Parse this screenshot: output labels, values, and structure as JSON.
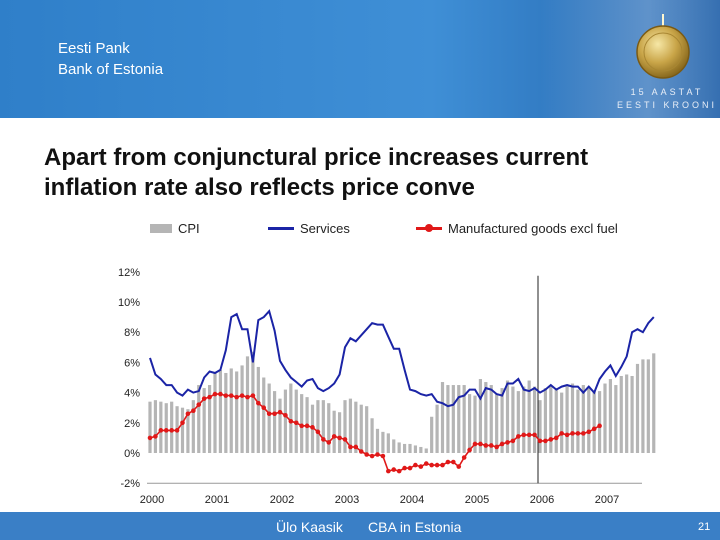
{
  "header": {
    "bank_name_et": "Eesti Pank",
    "bank_name_en": "Bank of Estonia",
    "anniversary_line1": "15 AASTAT",
    "anniversary_line2": "EESTI KROONI"
  },
  "title": "Apart from conjunctural price increases current inflation rate also reflects price conve",
  "footer": {
    "author": "Ülo Kaasik",
    "topic": "CBA in Estonia",
    "page": "21"
  },
  "colors": {
    "cpi": "#b5b5b5",
    "services": "#1b24a6",
    "manufactured": "#e01818"
  },
  "chart_data": {
    "type": "bar",
    "title": "",
    "xlabel": "",
    "ylabel": "",
    "ylim": [
      -2,
      12
    ],
    "yticks": [
      "12%",
      "10%",
      "8%",
      "6%",
      "4%",
      "2%",
      "0%",
      "-2%"
    ],
    "xticks": [
      "2000",
      "2001",
      "2002",
      "2003",
      "2004",
      "2005",
      "2006",
      "2007"
    ],
    "frequency": "monthly",
    "start": "2000-01",
    "vertical_marker": "2006-01",
    "legend": [
      "CPI",
      "Services",
      "Manufactured goods excl fuel"
    ],
    "series": [
      {
        "name": "CPI",
        "type": "bar",
        "values": [
          3.4,
          3.5,
          3.4,
          3.3,
          3.4,
          3.1,
          3.0,
          2.9,
          3.5,
          4.5,
          4.3,
          4.5,
          5.3,
          5.5,
          5.3,
          5.6,
          5.4,
          5.8,
          6.4,
          6.7,
          5.7,
          5.0,
          4.6,
          4.1,
          3.6,
          4.2,
          4.6,
          4.2,
          3.9,
          3.7,
          3.2,
          3.5,
          3.5,
          3.3,
          2.8,
          2.7,
          3.5,
          3.6,
          3.4,
          3.2,
          3.1,
          2.3,
          1.6,
          1.4,
          1.3,
          0.9,
          0.7,
          0.6,
          0.6,
          0.5,
          0.4,
          0.3,
          2.4,
          3.2,
          4.7,
          4.5,
          4.5,
          4.5,
          4.5,
          3.9,
          3.8,
          4.9,
          4.7,
          4.5,
          3.9,
          4.3,
          4.8,
          4.4,
          4.1,
          4.4,
          4.8,
          4.4,
          3.5,
          4.3,
          4.4,
          4.3,
          4.0,
          4.4,
          4.6,
          4.2,
          4.5,
          4.4,
          4.1,
          4.1,
          4.6,
          4.9,
          4.5,
          5.1,
          5.2,
          5.1,
          5.9,
          6.2,
          6.2,
          6.6
        ]
      },
      {
        "name": "Services",
        "type": "line",
        "values": [
          6.3,
          5.2,
          4.9,
          4.5,
          4.5,
          4.0,
          3.8,
          4.2,
          4.0,
          4.1,
          5.0,
          5.4,
          5.3,
          5.5,
          6.8,
          9.0,
          9.2,
          8.2,
          8.2,
          6.0,
          8.8,
          9.0,
          9.4,
          8.1,
          6.1,
          5.5,
          5.0,
          4.7,
          4.4,
          4.8,
          4.9,
          4.3,
          4.1,
          4.3,
          4.6,
          5.2,
          7.0,
          7.6,
          7.4,
          7.8,
          8.2,
          8.6,
          8.5,
          8.5,
          7.7,
          6.9,
          6.9,
          5.5,
          4.2,
          4.1,
          3.9,
          3.8,
          3.9,
          3.4,
          3.3,
          3.1,
          3.2,
          3.7,
          3.8,
          4.2,
          4.2,
          3.6,
          4.3,
          4.2,
          3.9,
          3.8,
          4.6,
          4.6,
          4.9,
          4.2,
          4.1,
          4.3,
          4.0,
          4.2,
          4.5,
          4.2,
          4.4,
          4.5,
          4.4,
          4.4,
          4.0,
          4.4,
          4.0,
          4.9,
          5.4,
          5.8,
          5.1,
          5.7,
          6.4,
          8.0,
          8.2,
          8.0,
          8.6,
          9.0
        ]
      },
      {
        "name": "Manufactured goods excl fuel",
        "type": "line",
        "values": [
          1.0,
          1.1,
          1.5,
          1.5,
          1.5,
          1.5,
          2.0,
          2.6,
          2.8,
          3.2,
          3.6,
          3.7,
          3.9,
          3.9,
          3.8,
          3.8,
          3.7,
          3.8,
          3.7,
          3.8,
          3.3,
          3.0,
          2.6,
          2.6,
          2.7,
          2.5,
          2.1,
          2.0,
          1.8,
          1.8,
          1.7,
          1.4,
          0.9,
          0.7,
          1.1,
          1.0,
          0.9,
          0.4,
          0.4,
          0.1,
          -0.1,
          -0.2,
          -0.1,
          -0.2,
          -1.2,
          -1.1,
          -1.2,
          -1.0,
          -1.0,
          -0.8,
          -0.9,
          -0.7,
          -0.8,
          -0.8,
          -0.8,
          -0.6,
          -0.6,
          -0.9,
          -0.3,
          0.2,
          0.6,
          0.6,
          0.5,
          0.5,
          0.4,
          0.6,
          0.7,
          0.8,
          1.1,
          1.2,
          1.2,
          1.2,
          0.8,
          0.8,
          0.9,
          1.0,
          1.3,
          1.2,
          1.3,
          1.3,
          1.3,
          1.4,
          1.6,
          1.8
        ]
      }
    ]
  }
}
